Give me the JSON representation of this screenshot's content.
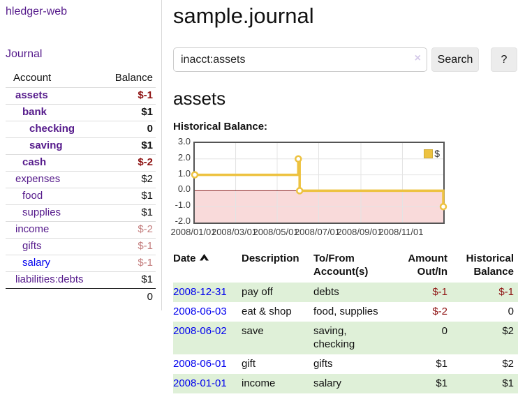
{
  "sidebar": {
    "brand": "hledger-web",
    "nav": {
      "journal_label": "Journal"
    },
    "accounts_table": {
      "headers": {
        "account": "Account",
        "balance": "Balance"
      },
      "rows": [
        {
          "label": "assets",
          "balance": "$-1",
          "depth": 0,
          "match": true,
          "balance_style": "neg-strong",
          "link_style": "purple"
        },
        {
          "label": "bank",
          "balance": "$1",
          "depth": 1,
          "match": true,
          "balance_style": "plain",
          "link_style": "purple"
        },
        {
          "label": "checking",
          "balance": "0",
          "depth": 2,
          "match": true,
          "balance_style": "plain",
          "link_style": "purple"
        },
        {
          "label": "saving",
          "balance": "$1",
          "depth": 2,
          "match": true,
          "balance_style": "plain",
          "link_style": "purple"
        },
        {
          "label": "cash",
          "balance": "$-2",
          "depth": 1,
          "match": true,
          "balance_style": "neg-strong",
          "link_style": "purple"
        },
        {
          "label": "expenses",
          "balance": "$2",
          "depth": 0,
          "match": false,
          "balance_style": "plain",
          "link_style": "purple"
        },
        {
          "label": "food",
          "balance": "$1",
          "depth": 1,
          "match": false,
          "balance_style": "plain",
          "link_style": "purple"
        },
        {
          "label": "supplies",
          "balance": "$1",
          "depth": 1,
          "match": false,
          "balance_style": "plain",
          "link_style": "purple"
        },
        {
          "label": "income",
          "balance": "$-2",
          "depth": 0,
          "match": false,
          "balance_style": "neg-muted",
          "link_style": "purple"
        },
        {
          "label": "gifts",
          "balance": "$-1",
          "depth": 1,
          "match": false,
          "balance_style": "neg-muted",
          "link_style": "purple"
        },
        {
          "label": "salary",
          "balance": "$-1",
          "depth": 1,
          "match": false,
          "balance_style": "neg-muted",
          "link_style": "blue"
        },
        {
          "label": "liabilities:debts",
          "balance": "$1",
          "depth": 0,
          "match": false,
          "balance_style": "plain",
          "link_style": "purple"
        }
      ],
      "total": "0"
    }
  },
  "header": {
    "title": "sample.journal"
  },
  "search": {
    "value": "inacct:assets",
    "clear_icon": "×",
    "button_label": "Search",
    "help_label": "?"
  },
  "account_page": {
    "heading": "assets",
    "chart_title": "Historical Balance:"
  },
  "chart_data": {
    "type": "line",
    "step": true,
    "title": "Historical Balance:",
    "series": [
      {
        "name": "$",
        "points": [
          [
            "2008-01-01",
            1
          ],
          [
            "2008-06-01",
            2
          ],
          [
            "2008-06-03",
            0
          ],
          [
            "2008-12-31",
            -1
          ]
        ]
      }
    ],
    "xlim": [
      "2008-01-01",
      "2008-12-31"
    ],
    "ylim": [
      -2,
      3
    ],
    "ytick_values": [
      3,
      2,
      1,
      0,
      -1,
      -2
    ],
    "ytick_labels": [
      "3.0",
      "2.0",
      "1.0",
      "0.0",
      "-1.0",
      "-2.0"
    ],
    "xtick_dates": [
      "2008-01-01",
      "2008-03-01",
      "2008-05-01",
      "2008-07-01",
      "2008-09-01",
      "2008-11-01"
    ],
    "xtick_labels": [
      "2008/01/01",
      "2008/03/01",
      "2008/05/01",
      "2008/07/01",
      "2008/09/01",
      "2008/11/01"
    ],
    "legend": {
      "label": "$",
      "position": "top-right"
    },
    "grid": true,
    "negative_region_shaded": true,
    "colors": {
      "line": "#edc240",
      "marker_fill": "#ffffff",
      "negative_fill": "#f9dada",
      "zero_line": "#8b1a1a",
      "grid": "#e4e4e4",
      "border": "#545454"
    }
  },
  "register_table": {
    "headers": {
      "date": "Date",
      "description": "Description",
      "tofrom_line1": "To/From",
      "tofrom_line2": "Account(s)",
      "amount_line1": "Amount",
      "amount_line2": "Out/In",
      "balance_line1": "Historical",
      "balance_line2": "Balance"
    },
    "sort": {
      "column": "date",
      "direction": "ascending"
    },
    "rows": [
      {
        "date": "2008-12-31",
        "description": "pay off",
        "accounts": "debts",
        "amount": "$-1",
        "balance": "$-1"
      },
      {
        "date": "2008-06-03",
        "description": "eat & shop",
        "accounts": "food, supplies",
        "amount": "$-2",
        "balance": "0"
      },
      {
        "date": "2008-06-02",
        "description": "save",
        "accounts": "saving, checking",
        "amount": "0",
        "balance": "$2"
      },
      {
        "date": "2008-06-01",
        "description": "gift",
        "accounts": "gifts",
        "amount": "$1",
        "balance": "$2"
      },
      {
        "date": "2008-01-01",
        "description": "income",
        "accounts": "salary",
        "amount": "$1",
        "balance": "$1"
      }
    ]
  },
  "colors": {
    "link_purple": "#551a8b",
    "link_blue": "#0000ee",
    "negative_strong": "#8e1212",
    "negative_muted": "#c47e7e",
    "row_stripe_green": "#dff0d8",
    "chart_line_yellow": "#edc240"
  }
}
